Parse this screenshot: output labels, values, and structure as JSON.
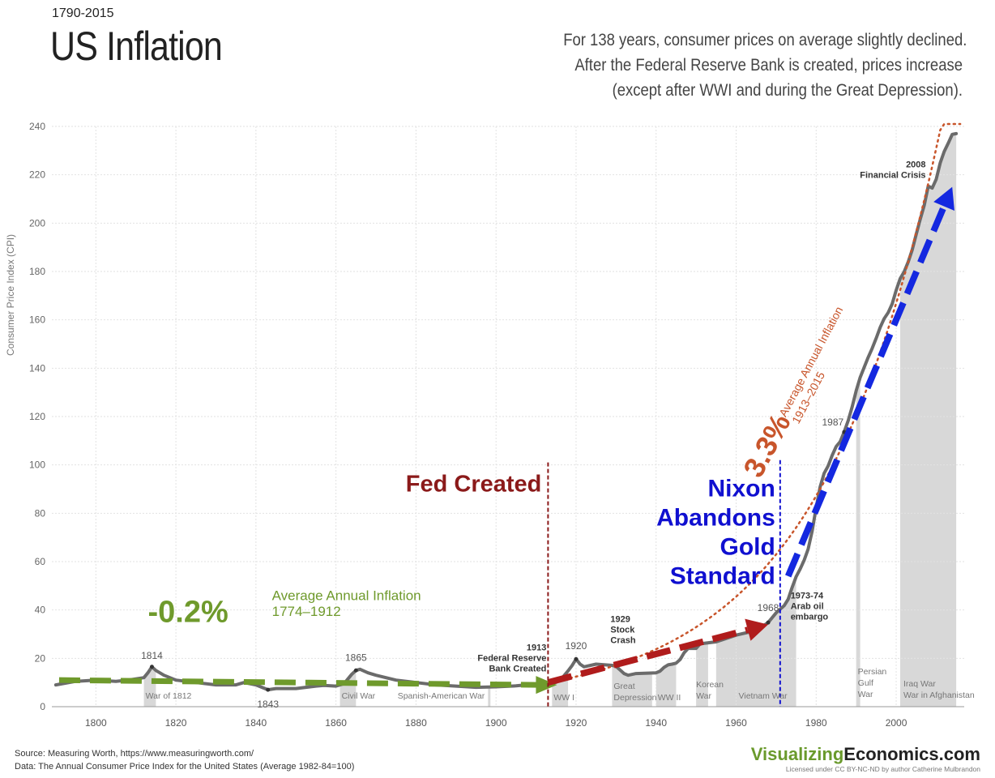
{
  "header": {
    "range": "1790-2015",
    "title": "US Inflation",
    "subtitle_lines": [
      "For 138 years, consumer prices on average slightly declined.",
      "After the Federal Reserve Bank is created, prices increase",
      "(except after WWI and during the Great Depression)."
    ]
  },
  "chart_data": {
    "type": "area",
    "ylabel": "Consumer Price Index (CPI)",
    "xlim": [
      1789,
      2017
    ],
    "ylim": [
      0,
      240
    ],
    "x_ticks": [
      1800,
      1820,
      1840,
      1860,
      1880,
      1900,
      1920,
      1940,
      1960,
      1980,
      2000
    ],
    "y_ticks": [
      0,
      20,
      40,
      60,
      80,
      100,
      120,
      140,
      160,
      180,
      200,
      220,
      240
    ],
    "grid": true,
    "series": [
      {
        "values_x": [
          1790,
          1795,
          1800,
          1805,
          1808,
          1810,
          1812,
          1813,
          1814,
          1815,
          1817,
          1820,
          1825,
          1830,
          1835,
          1837,
          1840,
          1843,
          1845,
          1850,
          1855,
          1857,
          1860,
          1862,
          1864,
          1865,
          1866,
          1868,
          1870,
          1875,
          1880,
          1885,
          1890,
          1895,
          1900,
          1905,
          1910,
          1913,
          1915,
          1916,
          1917,
          1918,
          1919,
          1920,
          1921,
          1922,
          1925,
          1929,
          1930,
          1931,
          1932,
          1933,
          1935,
          1940,
          1941,
          1942,
          1943,
          1944,
          1945,
          1946,
          1947,
          1948,
          1950,
          1951,
          1955,
          1960,
          1965,
          1968,
          1970,
          1972,
          1973,
          1974,
          1975,
          1976,
          1977,
          1978,
          1979,
          1980,
          1981,
          1982,
          1983,
          1984,
          1985,
          1986,
          1987,
          1988,
          1989,
          1990,
          1991,
          1992,
          1993,
          1994,
          1995,
          1996,
          1997,
          1998,
          1999,
          2000,
          2001,
          2002,
          2003,
          2004,
          2005,
          2006,
          2007,
          2008,
          2009,
          2010,
          2011,
          2012,
          2013,
          2014,
          2015
        ],
        "values_y": [
          9.0,
          10.5,
          11.0,
          10.5,
          11.0,
          11.5,
          12.0,
          14.0,
          16.5,
          15.0,
          13.0,
          11.0,
          10.0,
          9.0,
          9.0,
          10.0,
          9.0,
          7.0,
          7.5,
          7.5,
          8.5,
          8.8,
          8.5,
          9.5,
          13.5,
          15.0,
          15.5,
          14.0,
          13.0,
          11.0,
          10.0,
          9.0,
          8.5,
          8.0,
          8.2,
          8.6,
          9.4,
          9.9,
          10.1,
          11.0,
          12.8,
          14.8,
          17.0,
          19.7,
          17.6,
          16.5,
          17.6,
          17.1,
          16.7,
          15.2,
          13.7,
          13.0,
          13.7,
          14.0,
          14.7,
          16.3,
          17.3,
          17.6,
          18.0,
          19.5,
          22.3,
          24.1,
          24.1,
          26.0,
          26.8,
          29.6,
          31.5,
          34.8,
          38.8,
          41.8,
          44.4,
          49.3,
          53.8,
          56.9,
          60.6,
          65.2,
          72.6,
          82.4,
          90.9,
          96.5,
          99.6,
          103.9,
          107.6,
          109.6,
          113.6,
          118.3,
          124.0,
          130.7,
          136.2,
          140.3,
          144.5,
          148.2,
          152.4,
          156.9,
          160.5,
          163.0,
          166.6,
          172.2,
          177.1,
          179.9,
          184.0,
          188.9,
          195.3,
          201.6,
          207.3,
          215.3,
          214.5,
          218.1,
          224.9,
          229.6,
          233.0,
          236.7,
          237.0
        ]
      }
    ],
    "point_labels": [
      {
        "x": 1814,
        "y": 16.5,
        "text": "1814"
      },
      {
        "x": 1843,
        "y": 7.0,
        "text": "1843"
      },
      {
        "x": 1865,
        "y": 15.0,
        "text": "1865"
      },
      {
        "x": 1920,
        "y": 19.7,
        "text": "1920"
      },
      {
        "x": 1968,
        "y": 34.8,
        "text": "1968"
      },
      {
        "x": 1987,
        "y": 113.6,
        "text": "1987"
      }
    ],
    "event_labels": [
      {
        "x": 1913,
        "lines": [
          "1913",
          "Federal Reserve",
          "Bank Created"
        ]
      },
      {
        "x": 1929,
        "lines": [
          "1929",
          "Stock",
          "Crash"
        ]
      },
      {
        "x": 1973,
        "lines": [
          "1973-74",
          "Arab oil",
          "embargo"
        ]
      },
      {
        "x": 2008,
        "lines": [
          "2008",
          "Financial Crisis"
        ]
      }
    ],
    "war_periods": [
      {
        "start": 1812,
        "end": 1815,
        "label": "War of  1812"
      },
      {
        "start": 1861,
        "end": 1865,
        "label": "Civil War"
      },
      {
        "start": 1898,
        "end": 1898.6,
        "label": "Spanish-American War"
      },
      {
        "start": 1914,
        "end": 1918,
        "label": "WW I"
      },
      {
        "start": 1929,
        "end": 1939,
        "label": "Great\nDepression"
      },
      {
        "start": 1940,
        "end": 1945,
        "label": "WW II"
      },
      {
        "start": 1950,
        "end": 1953,
        "label": "Korean\nWar"
      },
      {
        "start": 1955,
        "end": 1975,
        "label": "Vietnam War"
      },
      {
        "start": 1990,
        "end": 1991,
        "label": "Persian\nGulf\nWar"
      },
      {
        "start": 2001,
        "end": 2015,
        "label": "Iraq War\nWar in Afghanistan"
      }
    ],
    "fed_created": {
      "x": 1913,
      "label": "Fed Created",
      "color": "#8b1a1a"
    },
    "nixon": {
      "x": 1971,
      "lines": [
        "Nixon",
        "Abandons",
        "Gold",
        "Standard"
      ],
      "color": "#1010d0"
    },
    "pre_fed_trend": {
      "rate": "-0.2%",
      "label_lines": [
        "Average Annual Inflation",
        "1774–1912"
      ],
      "color": "#6f9a2c",
      "from": [
        1790,
        11
      ],
      "to": [
        1912,
        9
      ]
    },
    "post_fed_trend": {
      "rate": "3.3%",
      "label_lines": [
        "Average Annual Inflation",
        "1913–2015"
      ],
      "color": "#c8552b"
    },
    "arrows": [
      {
        "from": [
          1913,
          10
        ],
        "to": [
          1968,
          34
        ],
        "color": "#b01c1c"
      },
      {
        "from": [
          1973,
          54
        ],
        "to": [
          2014,
          215
        ],
        "color": "#1428e0"
      }
    ]
  },
  "footer": {
    "source_lines": [
      "Source: Measuring Worth, https://www.measuringworth.com/",
      "Data: The Annual Consumer Price Index for the United States (Average 1982-84=100)"
    ],
    "brand_a": "Visualizing",
    "brand_b": "Economics.com",
    "license": "Licensed under CC BY-NC-ND by author Catherine Mulbrandon"
  }
}
